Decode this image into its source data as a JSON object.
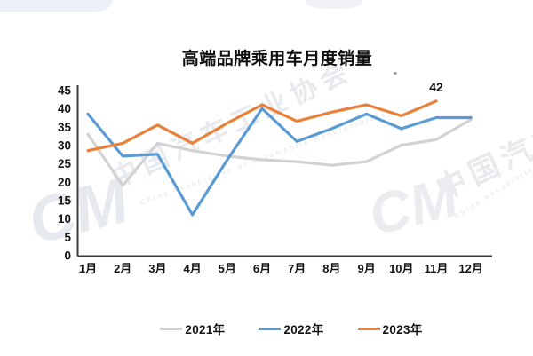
{
  "title": "高端品牌乘用车月度销量",
  "watermark": {
    "org_cn": "中国汽车工业协会",
    "org_en": "China Association of Automobile Manufacturers",
    "logo": "CM"
  },
  "chart_data": {
    "type": "line",
    "title": "高端品牌乘用车月度销量",
    "categories": [
      "1月",
      "2月",
      "3月",
      "4月",
      "5月",
      "6月",
      "7月",
      "8月",
      "9月",
      "10月",
      "11月",
      "12月"
    ],
    "series": [
      {
        "name": "2021年",
        "color": "#d2d2d2",
        "values": [
          33,
          19,
          30.5,
          28.5,
          27,
          26,
          25.5,
          24.5,
          25.5,
          30,
          31.5,
          37
        ]
      },
      {
        "name": "2022年",
        "color": "#5b9bd5",
        "values": [
          38.5,
          27,
          27.5,
          11,
          26,
          40,
          31,
          34.5,
          38.5,
          34.5,
          37.5,
          37.5
        ]
      },
      {
        "name": "2023年",
        "color": "#e8813a",
        "values": [
          28.5,
          30.5,
          35.5,
          30.5,
          36,
          41,
          36.5,
          39,
          41,
          38,
          42,
          null
        ]
      }
    ],
    "xlabel": "",
    "ylabel": "",
    "ylim": [
      0,
      45
    ],
    "y_ticks": [
      0,
      5,
      10,
      15,
      20,
      25,
      30,
      35,
      40,
      45
    ],
    "grid": false,
    "legend_position": "bottom",
    "annotations": [
      {
        "text": "42",
        "series": "2023年",
        "category": "11月"
      }
    ]
  }
}
